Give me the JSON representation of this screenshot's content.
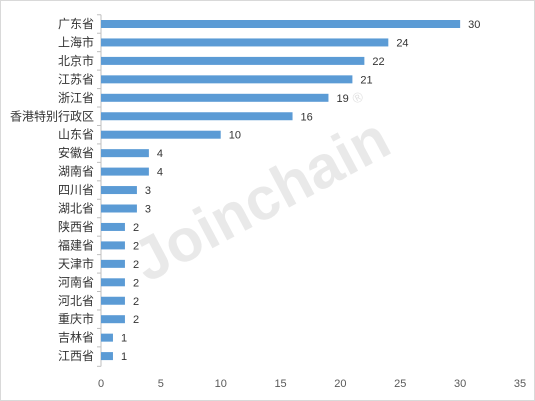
{
  "chart_data": {
    "type": "bar",
    "orientation": "horizontal",
    "categories": [
      "广东省",
      "上海市",
      "北京市",
      "江苏省",
      "浙江省",
      "香港特别行政区",
      "山东省",
      "安徽省",
      "湖南省",
      "四川省",
      "湖北省",
      "陕西省",
      "福建省",
      "天津市",
      "河南省",
      "河北省",
      "重庆市",
      "吉林省",
      "江西省"
    ],
    "values": [
      30,
      24,
      22,
      21,
      19,
      16,
      10,
      4,
      4,
      3,
      3,
      2,
      2,
      2,
      2,
      2,
      2,
      1,
      1
    ],
    "xlim": [
      0,
      35
    ],
    "xticks": [
      0,
      5,
      10,
      15,
      20,
      25,
      30,
      35
    ],
    "grid": false,
    "legend": "none",
    "bar_color": "#5B9BD5",
    "data_labels": true
  },
  "watermark": {
    "text": "Joinchain",
    "mark": "®"
  }
}
